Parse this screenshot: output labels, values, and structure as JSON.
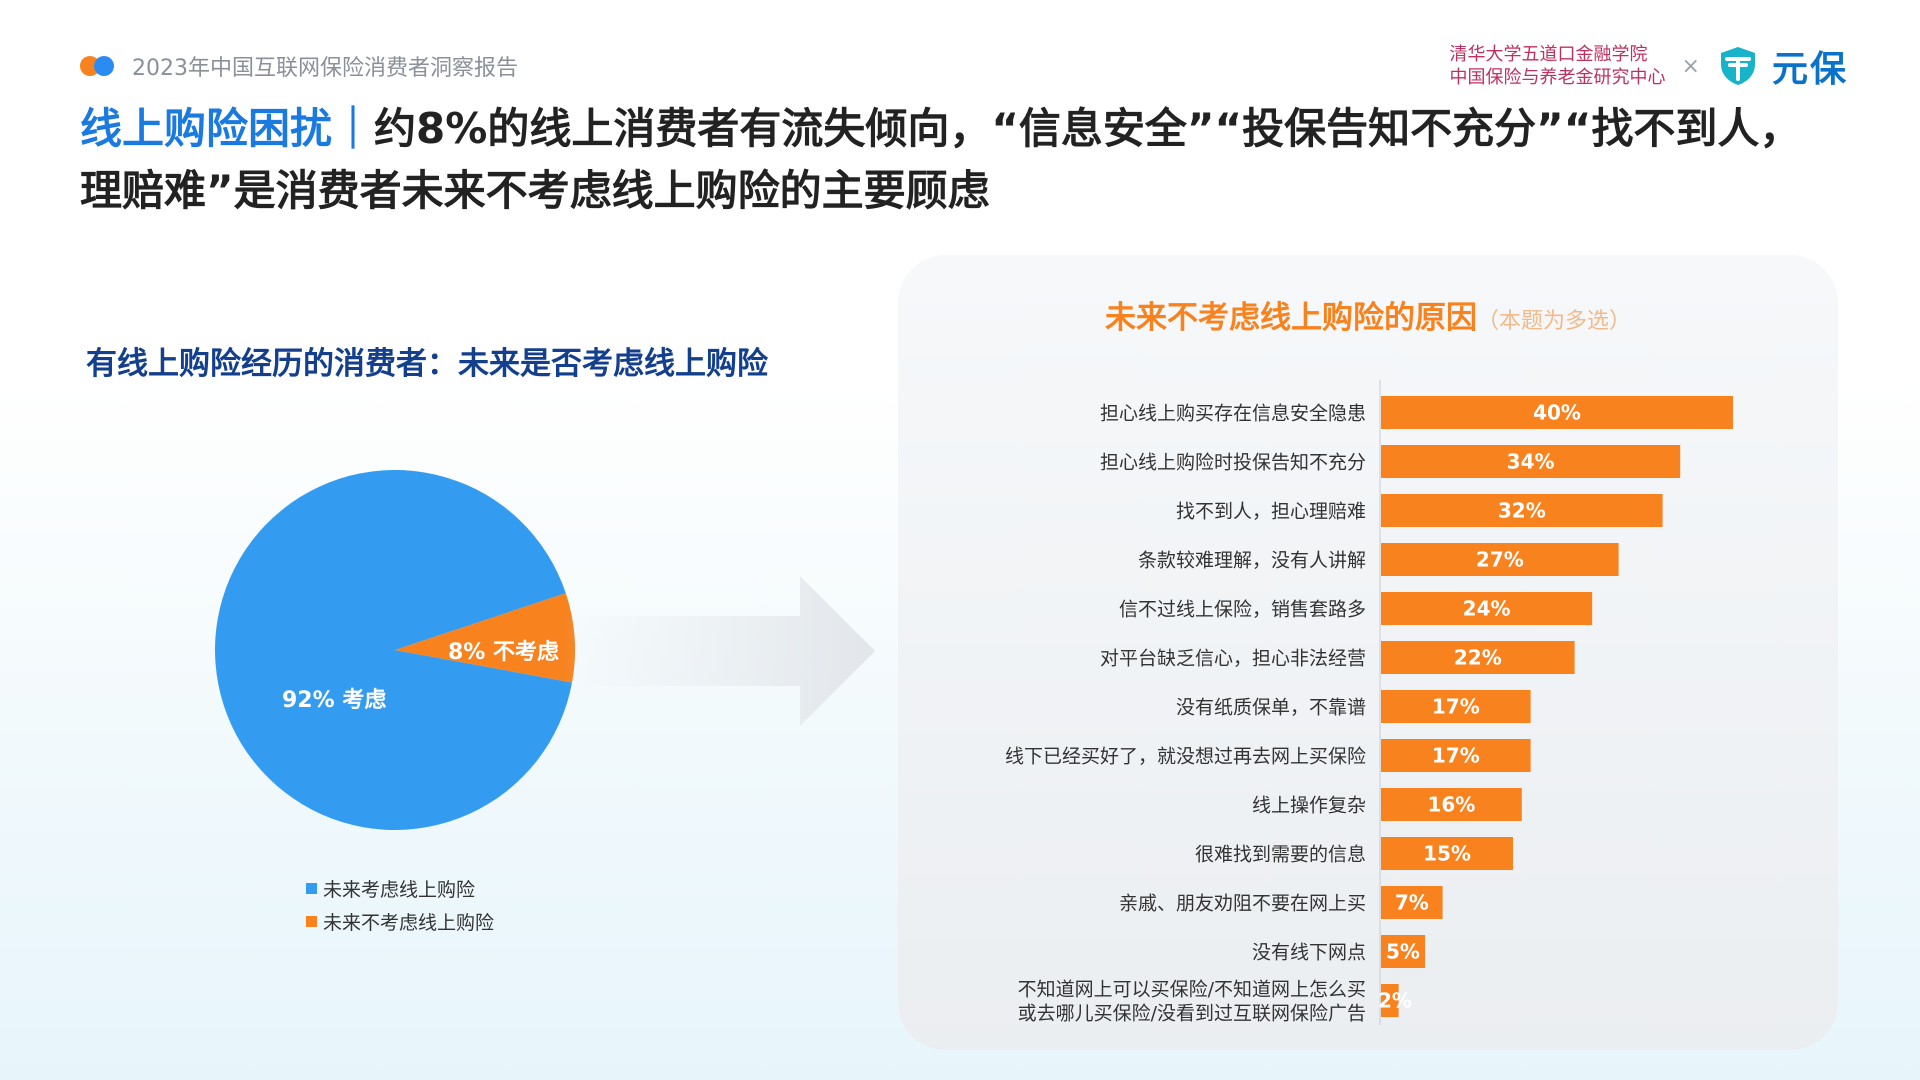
{
  "header": {
    "report_title": "2023年中国互联网保险消费者洞察报告",
    "institution_line1": "清华大学五道口金融学院",
    "institution_line2": "中国保险与养老金研究中心",
    "times": "×",
    "brand": "元保"
  },
  "headline": {
    "highlight": "线上购险困扰｜",
    "text": "约8%的线上消费者有流失倾向，“信息安全”“投保告知不充分”“找不到人，理赔难”是消费者未来不考虑线上购险的主要顾虑"
  },
  "left_chart_title": "有线上购险经历的消费者：未来是否考虑线上购险",
  "right_chart_title": "未来不考虑线上购险的原因",
  "right_chart_note": "（本题为多选）",
  "colors": {
    "blue": "#349cf0",
    "orange": "#f7821e",
    "title_blue": "#133f8c"
  },
  "chart_data": [
    {
      "type": "pie",
      "slices": [
        {
          "label": "92% 考虑",
          "value": 92,
          "color": "#349cf0",
          "legend": "未来考虑线上购险"
        },
        {
          "label": "8% 不考虑",
          "value": 8,
          "color": "#f7821e",
          "legend": "未来不考虑线上购险"
        }
      ]
    },
    {
      "type": "bar",
      "orientation": "horizontal",
      "xlim": [
        0,
        45
      ],
      "color": "#f7821e",
      "categories": [
        "担心线上购买存在信息安全隐患",
        "担心线上购险时投保告知不充分",
        "找不到人，担心理赔难",
        "条款较难理解，没有人讲解",
        "信不过线上保险，销售套路多",
        "对平台缺乏信心，担心非法经营",
        "没有纸质保单，不靠谱",
        "线下已经买好了，就没想过再去网上买保险",
        "线上操作复杂",
        "很难找到需要的信息",
        "亲戚、朋友劝阻不要在网上买",
        "没有线下网点",
        "不知道网上可以买保险/不知道网上怎么买\n或去哪儿买保险/没看到过互联网保险广告"
      ],
      "values": [
        40,
        34,
        32,
        27,
        24,
        22,
        17,
        17,
        16,
        15,
        7,
        5,
        2
      ],
      "labels": [
        "40%",
        "34%",
        "32%",
        "27%",
        "24%",
        "22%",
        "17%",
        "17%",
        "16%",
        "15%",
        "7%",
        "5%",
        "2%"
      ]
    }
  ]
}
